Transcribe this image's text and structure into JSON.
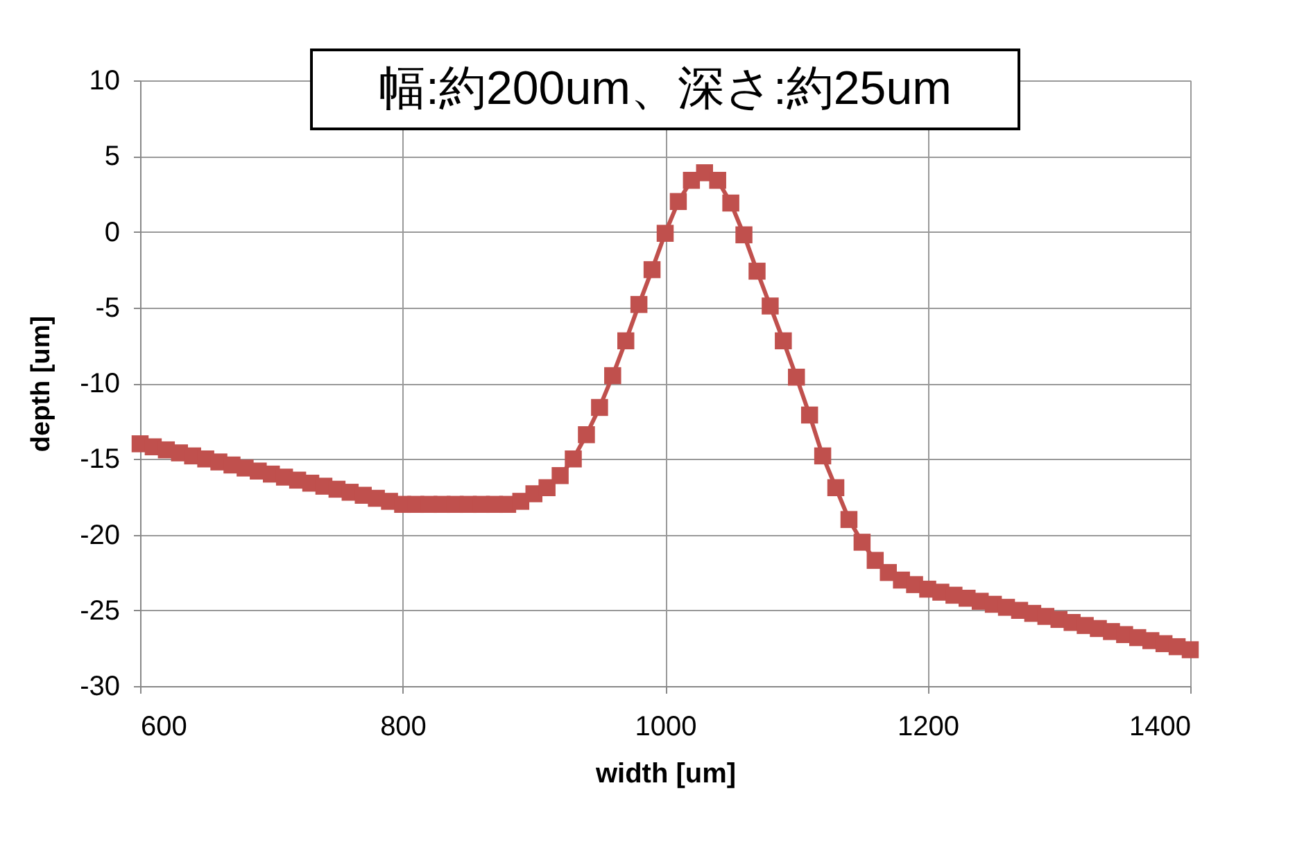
{
  "chart_data": {
    "type": "line",
    "title": "幅:約200um、深さ:約25um",
    "xlabel": "width [um]",
    "ylabel": "depth [um]",
    "x": [
      600,
      610,
      620,
      630,
      640,
      650,
      660,
      670,
      680,
      690,
      700,
      710,
      720,
      730,
      740,
      750,
      760,
      770,
      780,
      790,
      800,
      810,
      820,
      830,
      840,
      850,
      860,
      870,
      880,
      890,
      900,
      910,
      920,
      930,
      940,
      950,
      960,
      970,
      980,
      990,
      1000,
      1010,
      1020,
      1030,
      1040,
      1050,
      1060,
      1070,
      1080,
      1090,
      1100,
      1110,
      1120,
      1130,
      1140,
      1150,
      1160,
      1170,
      1180,
      1190,
      1200,
      1210,
      1220,
      1230,
      1240,
      1250,
      1260,
      1270,
      1280,
      1290,
      1300,
      1310,
      1320,
      1330,
      1340,
      1350,
      1360,
      1370,
      1380,
      1390,
      1400
    ],
    "series": [
      {
        "color": "#c0504d",
        "values": [
          -14.0,
          -14.2,
          -14.4,
          -14.6,
          -14.8,
          -15.0,
          -15.2,
          -15.4,
          -15.6,
          -15.8,
          -16.0,
          -16.2,
          -16.4,
          -16.6,
          -16.8,
          -17.0,
          -17.2,
          -17.4,
          -17.6,
          -17.8,
          -18.0,
          -18.0,
          -18.0,
          -18.0,
          -18.0,
          -18.0,
          -18.0,
          -18.0,
          -18.0,
          -17.8,
          -17.3,
          -16.9,
          -16.1,
          -15.0,
          -13.4,
          -11.6,
          -9.5,
          -7.2,
          -4.8,
          -2.5,
          -0.1,
          2.0,
          3.4,
          3.9,
          3.4,
          1.9,
          -0.2,
          -2.6,
          -4.9,
          -7.2,
          -9.6,
          -12.1,
          -14.8,
          -16.9,
          -19.0,
          -20.5,
          -21.7,
          -22.5,
          -23.0,
          -23.3,
          -23.6,
          -23.8,
          -24.0,
          -24.2,
          -24.4,
          -24.6,
          -24.8,
          -25.0,
          -25.2,
          -25.4,
          -25.6,
          -25.8,
          -26.0,
          -26.2,
          -26.4,
          -26.6,
          -26.8,
          -27.0,
          -27.2,
          -27.4,
          -27.6
        ]
      }
    ],
    "xlim": [
      600,
      1400
    ],
    "xticks": [
      600,
      800,
      1000,
      1200,
      1400
    ],
    "ylim": [
      -30,
      10
    ],
    "yticks": [
      -30,
      -25,
      -20,
      -15,
      -10,
      -5,
      0,
      5,
      10
    ],
    "grid": true,
    "marker": "square",
    "line_style": "solid",
    "legend": false
  }
}
